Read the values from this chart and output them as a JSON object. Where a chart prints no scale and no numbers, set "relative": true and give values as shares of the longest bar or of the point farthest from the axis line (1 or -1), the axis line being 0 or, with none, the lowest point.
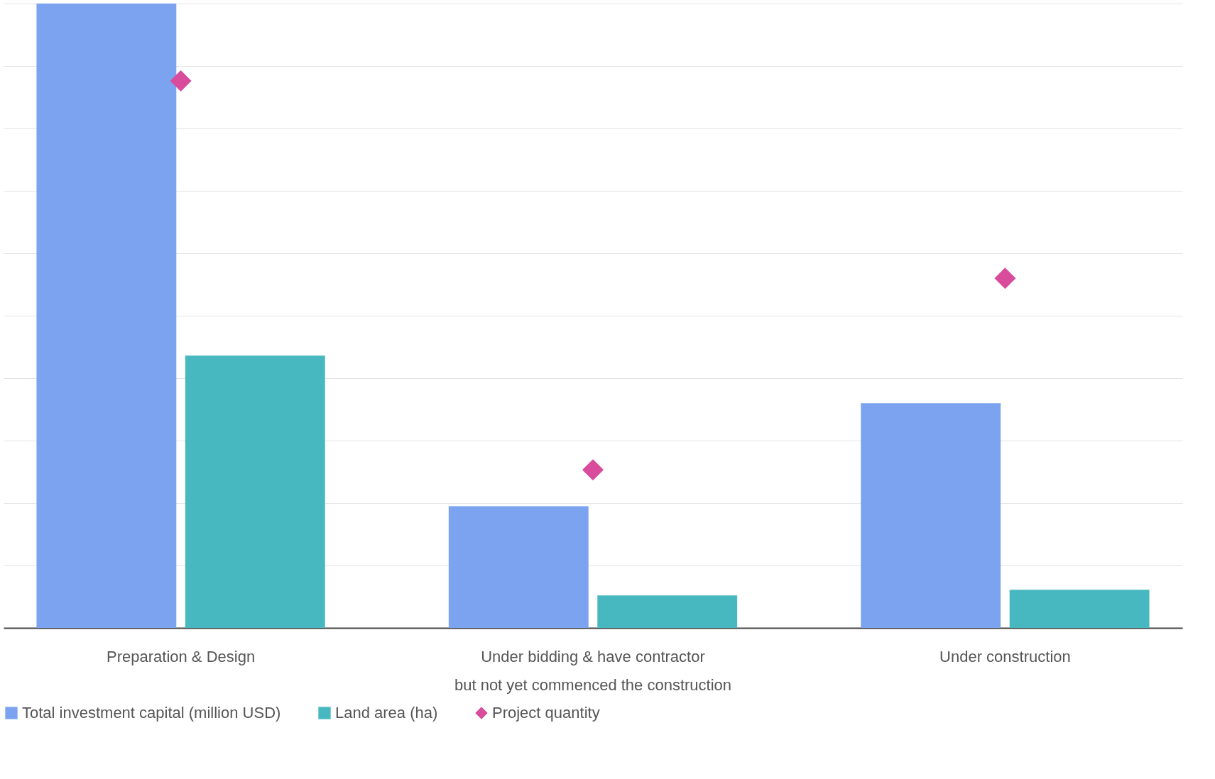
{
  "chart_data": {
    "type": "bar",
    "relative": true,
    "grid": "y",
    "legend": "bottom",
    "marker": "diamond",
    "categories": [
      "Preparation & Design",
      "Under bidding & have contractor\nbut not yet commenced the construction",
      "Under construction"
    ],
    "series": [
      {
        "name": "Total investment capital (million USD)",
        "color": "#7ba3ef",
        "values": [
          1,
          0.195,
          0.36
        ]
      },
      {
        "name": "Land area (ha)",
        "color": "#47b8bf",
        "values": [
          0.436,
          0.052,
          0.061
        ]
      },
      {
        "name": "Project quantity",
        "type": "scatter",
        "color": "#d94b9b",
        "values": [
          0.876,
          0.253,
          0.56
        ]
      }
    ]
  }
}
